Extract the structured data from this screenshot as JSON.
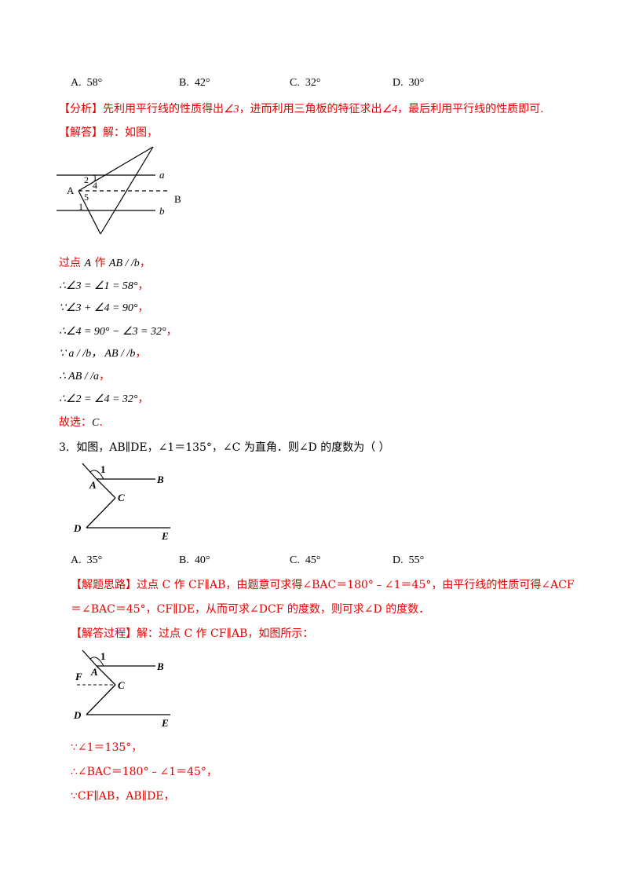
{
  "q2": {
    "options": [
      {
        "letter": "A.",
        "value": "58°"
      },
      {
        "letter": "B.",
        "value": "42°"
      },
      {
        "letter": "C.",
        "value": "32°"
      },
      {
        "letter": "D.",
        "value": "30°"
      }
    ],
    "analysis_label": "【分析】",
    "analysis_a": "先利用平行线的性质得出",
    "analysis_angle3": "∠3",
    "analysis_b": "，进而利用三角板的特征求出",
    "analysis_angle4": "∠4",
    "analysis_c": "，最后利用平行线的性质即可.",
    "answer_label": "【解答】",
    "answer_text": "解：如图，",
    "figure": {
      "label_2": "2",
      "label_1_top": "1",
      "label_4": "4",
      "label_A": "A",
      "label_5": "5",
      "label_1": "1",
      "label_a": "a",
      "label_b": "b",
      "label_B": "B"
    },
    "steps": [
      {
        "prefix": "过点 ",
        "math": "A",
        "mid": " 作 ",
        "math2": "AB / /b",
        "suffix": "，"
      },
      {
        "math": "∴∠3 = ∠1 = 58°",
        "suffix": "，"
      },
      {
        "math": "∵∠3 + ∠4 = 90°",
        "suffix": "，"
      },
      {
        "math": "∴∠4 = 90° − ∠3 = 32°",
        "suffix": "，"
      },
      {
        "math": "∵ a / /b，  AB / /b",
        "suffix": "，"
      },
      {
        "math": "∴ AB / /a",
        "suffix": "，"
      },
      {
        "math": "∴∠2 = ∠4 = 32°",
        "suffix": "，"
      }
    ],
    "choice_label": "故选：",
    "choice_value": "C",
    "choice_suffix": "."
  },
  "q3": {
    "number": "3.",
    "stem": "如图，AB∥DE，∠1＝135°，∠C 为直角．则∠D 的度数为（       ）",
    "figure1": {
      "label_1": "1",
      "label_B": "B",
      "label_A": "A",
      "label_C": "C",
      "label_D": "D",
      "label_E": "E"
    },
    "options": [
      {
        "letter": "A.",
        "value": "35°"
      },
      {
        "letter": "B.",
        "value": "40°"
      },
      {
        "letter": "C.",
        "value": "45°"
      },
      {
        "letter": "D.",
        "value": "55°"
      }
    ],
    "thinking_label": "【解题思路】",
    "thinking_line1": "过点 C 作 CF∥AB，由题意可求得∠BAC＝180°﹣∠1＝45°，由平行线的性质可得∠ACF",
    "thinking_line2": "＝∠BAC＝45°，CF∥DE，从而可求∠DCF 的度数，则可求∠D 的度数．",
    "process_label": "【解答过程】",
    "process_text": "解：过点 C 作 CF∥AB，如图所示：",
    "figure2": {
      "label_1": "1",
      "label_A": "A",
      "label_B": "B",
      "label_F": "F",
      "label_C": "C",
      "label_D": "D",
      "label_E": "E"
    },
    "steps": [
      "∵∠1＝135°，",
      "∴∠BAC＝180°﹣∠1＝45°，",
      "∵CF∥AB，AB∥DE，"
    ]
  }
}
